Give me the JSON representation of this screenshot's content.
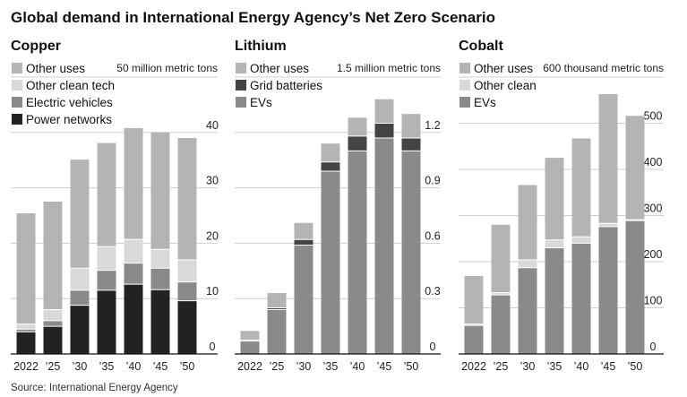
{
  "title": "Global demand in International Energy Agency’s Net Zero Scenario",
  "source": "Source: International Energy Agency",
  "colors": {
    "other_uses": "#b4b4b4",
    "other_clean": "#d9d9d9",
    "secondary": "#8a8a8a",
    "dark": "#222222",
    "grid_batteries": "#444444"
  },
  "chart_data": [
    {
      "type": "bar",
      "stacked": true,
      "title": "Copper",
      "unit_label": "50 million metric tons",
      "categories": [
        "2022",
        "’25",
        "’30",
        "’35",
        "’40",
        "’45",
        "’50"
      ],
      "ylim": [
        0,
        50
      ],
      "yticks": [
        "0",
        "10",
        "20",
        "30",
        "40"
      ],
      "legend": [
        "Other uses",
        "Other clean tech",
        "Electric vehicles",
        "Power networks"
      ],
      "series": [
        {
          "name": "Power networks",
          "color": "#222222",
          "values": [
            4.0,
            5.0,
            8.8,
            11.5,
            12.6,
            11.6,
            9.6
          ]
        },
        {
          "name": "Electric vehicles",
          "color": "#8a8a8a",
          "values": [
            0.5,
            1.0,
            2.7,
            3.6,
            3.8,
            3.9,
            3.4
          ]
        },
        {
          "name": "Other clean tech",
          "color": "#d9d9d9",
          "values": [
            0.9,
            2.0,
            4.0,
            4.3,
            4.3,
            3.4,
            4.0
          ]
        },
        {
          "name": "Other uses",
          "color": "#b4b4b4",
          "values": [
            20.0,
            19.5,
            19.6,
            18.7,
            20.1,
            21.1,
            22.0
          ]
        }
      ]
    },
    {
      "type": "bar",
      "stacked": true,
      "title": "Lithium",
      "unit_label": "1.5 million metric tons",
      "categories": [
        "2022",
        "’25",
        "’30",
        "’35",
        "’40",
        "’45",
        "’50"
      ],
      "ylim": [
        0,
        1.5
      ],
      "yticks": [
        "0",
        "0.3",
        "0.6",
        "0.9",
        "1.2"
      ],
      "legend": [
        "Other uses",
        "Grid batteries",
        "EVs"
      ],
      "series": [
        {
          "name": "EVs",
          "color": "#8a8a8a",
          "values": [
            0.07,
            0.24,
            0.59,
            0.99,
            1.1,
            1.17,
            1.1
          ]
        },
        {
          "name": "Grid batteries",
          "color": "#444444",
          "values": [
            0.005,
            0.01,
            0.03,
            0.05,
            0.08,
            0.08,
            0.07
          ]
        },
        {
          "name": "Other uses",
          "color": "#b4b4b4",
          "values": [
            0.05,
            0.08,
            0.09,
            0.1,
            0.1,
            0.13,
            0.13
          ]
        }
      ]
    },
    {
      "type": "bar",
      "stacked": true,
      "title": "Cobalt",
      "unit_label": "600 thousand metric tons",
      "categories": [
        "2022",
        "’25",
        "’30",
        "’35",
        "’40",
        "’45",
        "’50"
      ],
      "ylim": [
        0,
        600
      ],
      "yticks": [
        "0",
        "100",
        "200",
        "300",
        "400",
        "500"
      ],
      "legend": [
        "Other uses",
        "Other clean",
        "EVs"
      ],
      "series": [
        {
          "name": "EVs",
          "color": "#8a8a8a",
          "values": [
            62,
            128,
            187,
            230,
            240,
            276,
            289
          ]
        },
        {
          "name": "Other clean",
          "color": "#d9d9d9",
          "values": [
            3,
            5,
            17,
            17,
            14,
            7,
            2
          ]
        },
        {
          "name": "Other uses",
          "color": "#b4b4b4",
          "values": [
            104,
            147,
            162,
            178,
            213,
            280,
            225
          ]
        }
      ]
    }
  ]
}
